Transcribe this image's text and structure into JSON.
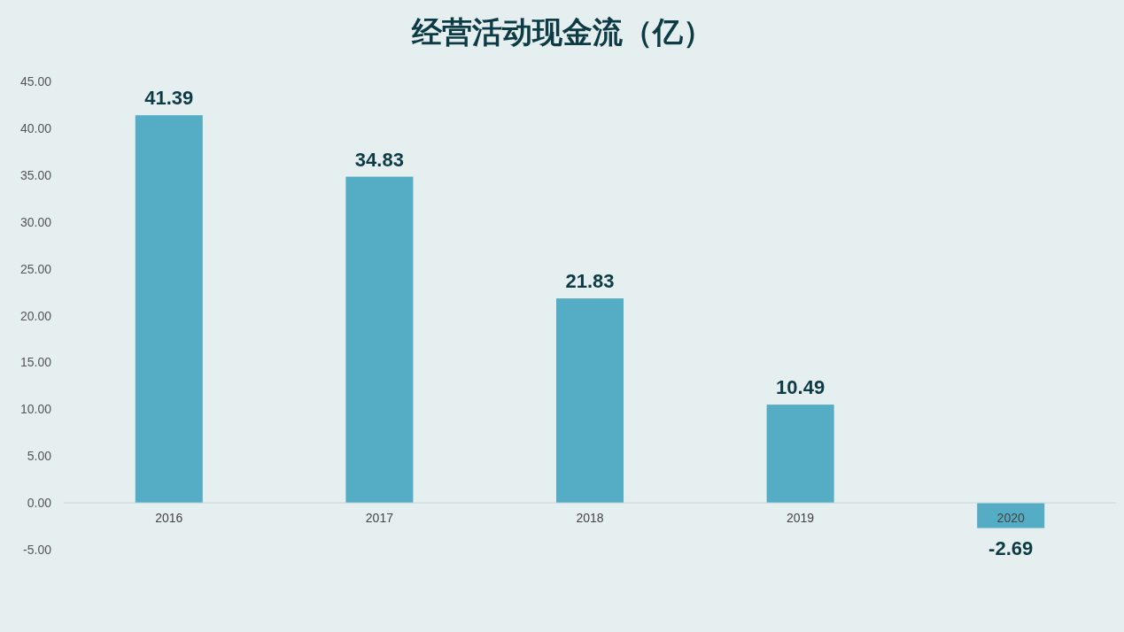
{
  "chart_data": {
    "type": "bar",
    "title": "经营活动现金流（亿）",
    "categories": [
      "2016",
      "2017",
      "2018",
      "2019",
      "2020"
    ],
    "values": [
      41.39,
      34.83,
      21.83,
      10.49,
      -2.69
    ],
    "color": "#55acc5",
    "ylim": [
      -5,
      45
    ],
    "yticks": [
      {
        "value": -5,
        "label": "-5.00"
      },
      {
        "value": 0,
        "label": "0.00"
      },
      {
        "value": 5,
        "label": "5.00"
      },
      {
        "value": 10,
        "label": "10.00"
      },
      {
        "value": 15,
        "label": "15.00"
      },
      {
        "value": 20,
        "label": "20.00"
      },
      {
        "value": 25,
        "label": "25.00"
      },
      {
        "value": 30,
        "label": "30.00"
      },
      {
        "value": 35,
        "label": "35.00"
      },
      {
        "value": 40,
        "label": "40.00"
      },
      {
        "value": 45,
        "label": "45.00"
      }
    ],
    "data_labels": true,
    "grid": false
  }
}
